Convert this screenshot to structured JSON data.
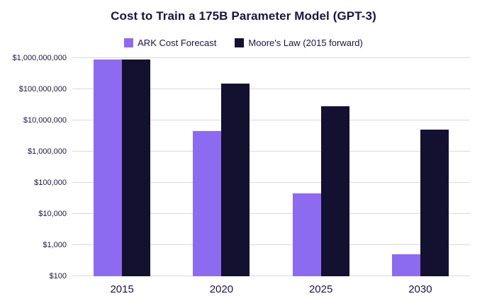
{
  "title": "Cost to Train a 175B Parameter Model (GPT-3)",
  "colors": {
    "ark": "#8c6bf0",
    "moore": "#14102f",
    "grid": "#d9d9d9",
    "text": "#1a1440",
    "background": "#ffffff"
  },
  "chart_data": {
    "type": "bar",
    "scale": "log",
    "title": "Cost to Train a 175B Parameter Model (GPT-3)",
    "categories": [
      "2015",
      "2020",
      "2025",
      "2030"
    ],
    "series": [
      {
        "name": "ARK Cost Forecast",
        "color_key": "ark",
        "values": [
          900000000,
          4600000,
          45000,
          500
        ]
      },
      {
        "name": "Moore's Law (2015 forward)",
        "color_key": "moore",
        "values": [
          900000000,
          150000000,
          28000000,
          5000000
        ]
      }
    ],
    "xlabel": "",
    "ylabel": "",
    "ylim": [
      100,
      1000000000
    ],
    "yticks": [
      100,
      1000,
      10000,
      100000,
      1000000,
      10000000,
      100000000,
      1000000000
    ],
    "ytick_labels": [
      "$100",
      "$1,000",
      "$10,000",
      "$100,000",
      "$1,000,000",
      "$10,000,000",
      "$100,000,000",
      "$1,000,000,000"
    ],
    "grid": true,
    "legend_position": "top"
  }
}
